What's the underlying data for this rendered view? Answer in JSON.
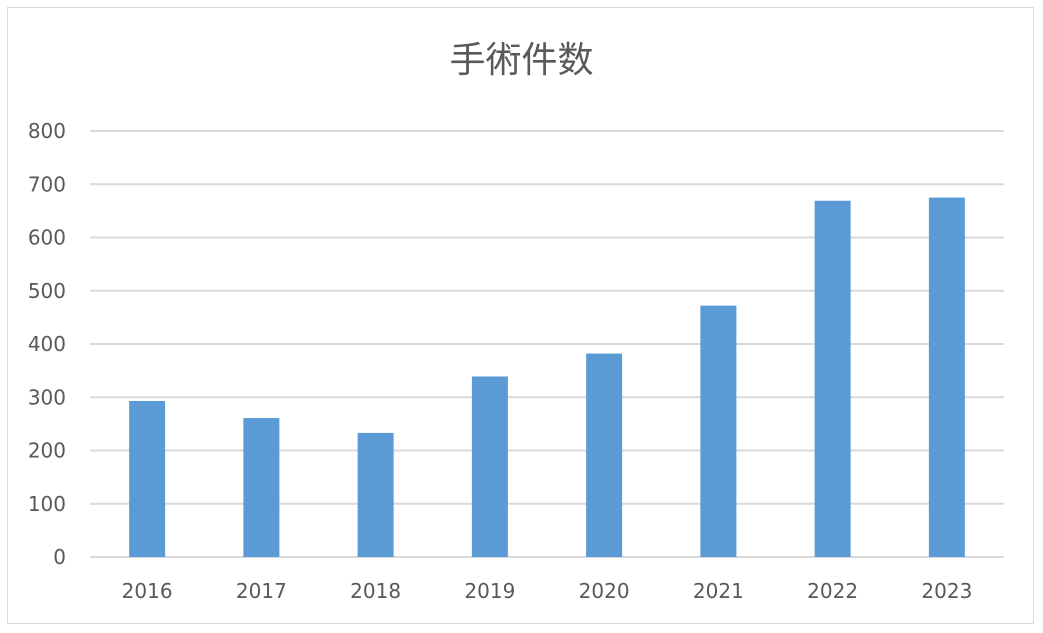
{
  "chart_data": {
    "type": "bar",
    "title": "手術件数",
    "categories": [
      "2016",
      "2017",
      "2018",
      "2019",
      "2020",
      "2021",
      "2022",
      "2023"
    ],
    "values": [
      293,
      261,
      233,
      339,
      382,
      472,
      669,
      675
    ],
    "ylim": [
      0,
      800
    ],
    "yticks": [
      "0",
      "100",
      "200",
      "300",
      "400",
      "500",
      "600",
      "700",
      "800"
    ],
    "grid": true,
    "legend": "none",
    "bar_color": "#5b9bd5",
    "grid_color": "#d9d9d9",
    "text_color": "#595959"
  }
}
